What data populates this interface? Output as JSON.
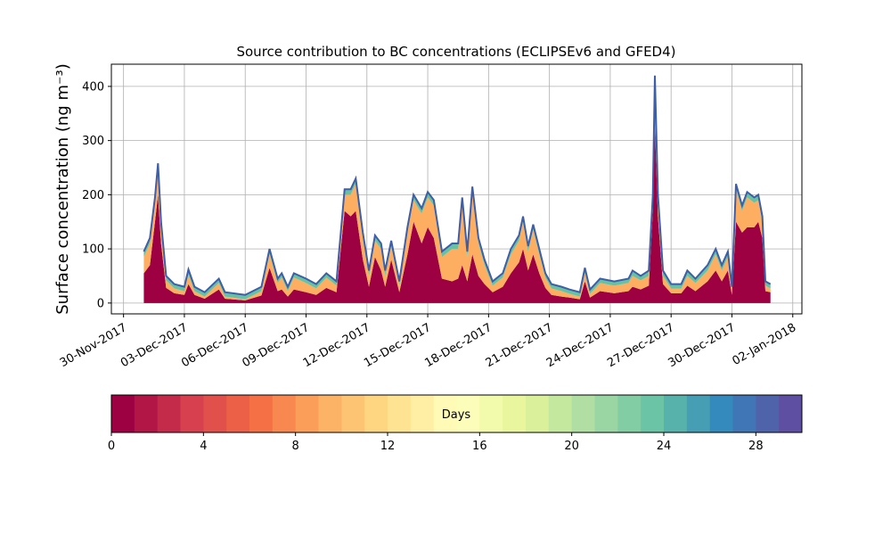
{
  "chart_data": {
    "type": "stacked_area",
    "title": "Source contribution to BC concentrations (ECLIPSEv6 and GFED4)",
    "ylabel": "Surface concentration (ng m⁻³)",
    "x": [
      1.0,
      1.3,
      1.55,
      1.7,
      1.85,
      2.1,
      2.5,
      3.0,
      3.2,
      3.5,
      4.0,
      4.7,
      5.0,
      6.0,
      6.8,
      7.2,
      7.6,
      7.8,
      8.1,
      8.4,
      9.0,
      9.5,
      10.0,
      10.5,
      10.9,
      11.2,
      11.45,
      11.8,
      12.1,
      12.4,
      12.7,
      12.9,
      13.2,
      13.6,
      14.0,
      14.3,
      14.7,
      15.0,
      15.3,
      15.7,
      16.2,
      16.5,
      16.7,
      16.95,
      17.2,
      17.5,
      17.8,
      18.2,
      18.7,
      19.1,
      19.5,
      19.7,
      19.95,
      20.2,
      20.5,
      20.8,
      21.1,
      21.6,
      22.0,
      22.5,
      22.75,
      23.0,
      23.5,
      24.2,
      24.9,
      25.1,
      25.5,
      25.9,
      26.1,
      26.2,
      26.35,
      26.6,
      27.0,
      27.5,
      27.8,
      28.2,
      28.8,
      29.2,
      29.5,
      29.8,
      30.0,
      30.2,
      30.5,
      30.75,
      31.1,
      31.3,
      31.5,
      31.65,
      31.9
    ],
    "series": [
      {
        "color": "#9e0142",
        "values": [
          55,
          70,
          150,
          200,
          110,
          28,
          18,
          15,
          35,
          15,
          8,
          25,
          8,
          5,
          14,
          65,
          22,
          25,
          12,
          25,
          20,
          15,
          28,
          20,
          170,
          160,
          170,
          80,
          30,
          85,
          60,
          30,
          80,
          20,
          90,
          150,
          110,
          140,
          120,
          45,
          40,
          45,
          70,
          40,
          90,
          50,
          35,
          20,
          30,
          55,
          75,
          100,
          60,
          90,
          55,
          28,
          15,
          12,
          10,
          7,
          40,
          10,
          22,
          18,
          22,
          30,
          25,
          32,
          170,
          330,
          160,
          35,
          18,
          18,
          32,
          22,
          40,
          60,
          40,
          60,
          15,
          150,
          130,
          140,
          140,
          150,
          120,
          22,
          20
        ]
      },
      {
        "color": "#fdae61",
        "values": [
          30,
          40,
          35,
          48,
          30,
          14,
          9,
          7,
          17,
          7,
          4,
          12,
          4,
          2,
          8,
          25,
          15,
          22,
          10,
          22,
          17,
          12,
          19,
          12,
          30,
          40,
          50,
          40,
          20,
          30,
          40,
          20,
          25,
          12,
          40,
          40,
          55,
          55,
          60,
          40,
          60,
          55,
          115,
          45,
          115,
          60,
          35,
          12,
          17,
          35,
          40,
          50,
          35,
          45,
          35,
          19,
          12,
          10,
          7,
          5,
          15,
          7,
          15,
          14,
          15,
          20,
          17,
          18,
          20,
          80,
          30,
          15,
          9,
          9,
          18,
          15,
          20,
          30,
          20,
          25,
          7,
          60,
          40,
          55,
          45,
          40,
          30,
          10,
          7
        ]
      },
      {
        "color": "#66c2a5",
        "values": [
          10,
          10,
          10,
          10,
          10,
          8,
          8,
          8,
          10,
          8,
          8,
          8,
          8,
          8,
          8,
          10,
          8,
          8,
          8,
          8,
          8,
          8,
          8,
          8,
          10,
          10,
          10,
          10,
          10,
          10,
          10,
          10,
          10,
          8,
          10,
          10,
          10,
          10,
          10,
          10,
          10,
          10,
          10,
          10,
          10,
          10,
          10,
          8,
          8,
          10,
          10,
          10,
          10,
          10,
          10,
          8,
          8,
          8,
          8,
          8,
          10,
          8,
          8,
          8,
          8,
          10,
          8,
          10,
          10,
          10,
          10,
          10,
          8,
          8,
          10,
          8,
          10,
          10,
          10,
          10,
          8,
          10,
          10,
          10,
          10,
          10,
          10,
          8,
          8
        ]
      }
    ],
    "outline_color": "#3f5ea8",
    "xlim": [
      -0.6,
      33.45
    ],
    "xticks": [
      {
        "value": 0,
        "label": "30-Nov-2017"
      },
      {
        "value": 3,
        "label": "03-Dec-2017"
      },
      {
        "value": 6,
        "label": "06-Dec-2017"
      },
      {
        "value": 9,
        "label": "09-Dec-2017"
      },
      {
        "value": 12,
        "label": "12-Dec-2017"
      },
      {
        "value": 15,
        "label": "15-Dec-2017"
      },
      {
        "value": 18,
        "label": "18-Dec-2017"
      },
      {
        "value": 21,
        "label": "21-Dec-2017"
      },
      {
        "value": 24,
        "label": "24-Dec-2017"
      },
      {
        "value": 27,
        "label": "27-Dec-2017"
      },
      {
        "value": 30,
        "label": "30-Dec-2017"
      },
      {
        "value": 33,
        "label": "02-Jan-2018"
      }
    ],
    "ylim": [
      -20,
      441
    ],
    "yticks": [
      0,
      100,
      200,
      300,
      400
    ],
    "grid": true,
    "colorbar": {
      "label": "Days",
      "lim": [
        0,
        30
      ],
      "ticks": [
        0,
        4,
        8,
        12,
        16,
        20,
        24,
        28
      ],
      "colormap": [
        "#9e0142",
        "#d53e4f",
        "#f46d43",
        "#fdae61",
        "#fee08b",
        "#ffffbf",
        "#e6f598",
        "#abdda4",
        "#66c2a5",
        "#3288bd",
        "#5e4fa2"
      ]
    }
  }
}
